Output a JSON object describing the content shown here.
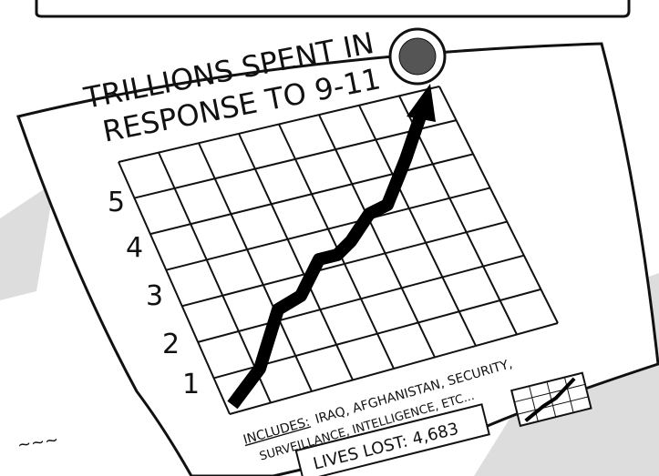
{
  "cartoon": {
    "title_lines": [
      "TRILLIONS SPENT IN",
      "RESPONSE TO 9-11"
    ],
    "y_labels": [
      "5",
      "4",
      "3",
      "2",
      "1"
    ],
    "includes_label": "INCLUDES:",
    "includes_lines": [
      "IRAQ, AFGHANISTAN, SECURITY,",
      "SURVEILLANCE, INTELLIGENCE, ETC..."
    ],
    "lives_lost": "LIVES LOST: 4,683"
  }
}
